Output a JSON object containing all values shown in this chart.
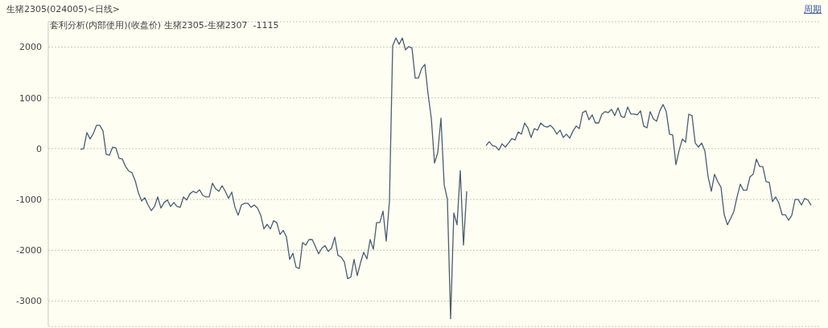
{
  "chart_data": {
    "type": "line",
    "title": "生猪2305(024005)<日线>",
    "subtitle": "套利分析(内部使用)(收盘价) 生猪2305-生猪2307  -1115",
    "annotations": [
      "周期"
    ],
    "categories": [
      null,
      null,
      null,
      null,
      null,
      null,
      null,
      null,
      null,
      null,
      null,
      null,
      null,
      null,
      null,
      null,
      null,
      null,
      null,
      null,
      null,
      null,
      null,
      null,
      null,
      null,
      null,
      null,
      null,
      null,
      null,
      null,
      null,
      null,
      null,
      null,
      null,
      null,
      null,
      null,
      null,
      null,
      null,
      null,
      null,
      null,
      null,
      null,
      null,
      null,
      null,
      null,
      null,
      null,
      null,
      null,
      null,
      null,
      null,
      null,
      null,
      null,
      null,
      null,
      null,
      null,
      null,
      null,
      null,
      null,
      null,
      null,
      null,
      null,
      null,
      null,
      null,
      null,
      null,
      null,
      null,
      null,
      null,
      null,
      null,
      null,
      null,
      null,
      null,
      null,
      null,
      null,
      null,
      null,
      null,
      null,
      null,
      null,
      null,
      null,
      null,
      null,
      null,
      null,
      null,
      null,
      null,
      null,
      null,
      null,
      null,
      null,
      null,
      null,
      null,
      null,
      null,
      null,
      null,
      null,
      null,
      null,
      null,
      null,
      null,
      null,
      null,
      null,
      null,
      null,
      null,
      null,
      null,
      null,
      null,
      null,
      null,
      null,
      null,
      null,
      null,
      null,
      null,
      null,
      null,
      null,
      null,
      null,
      null,
      null,
      null,
      null,
      null,
      null,
      null,
      null,
      null,
      null,
      null,
      null,
      null,
      null,
      null,
      null,
      null,
      null,
      null,
      null,
      null,
      null,
      null,
      null,
      null,
      null,
      null,
      null,
      null,
      null,
      null,
      null,
      null,
      null,
      null,
      null,
      null,
      null,
      null,
      null,
      null,
      null,
      null,
      null,
      null,
      null,
      null,
      null,
      null,
      null,
      null,
      null,
      null,
      null,
      null,
      null,
      null,
      null,
      null,
      null,
      null,
      null,
      null,
      null,
      null,
      null,
      null,
      null,
      null,
      null,
      null,
      null,
      null,
      null,
      null,
      null,
      null,
      null,
      null,
      null,
      null,
      null,
      null,
      null,
      null,
      null,
      null,
      null,
      null,
      null,
      null,
      null,
      null
    ],
    "series": [
      {
        "color": "#4a5e70",
        "values": [
          null,
          null,
          null,
          null,
          null,
          null,
          null,
          null,
          null,
          null,
          -15,
          0,
          316,
          190,
          300,
          460,
          460,
          350,
          -110,
          -130,
          30,
          15,
          -190,
          -205,
          -350,
          -440,
          -475,
          -630,
          -870,
          -1030,
          -965,
          -1110,
          -1220,
          -1140,
          -950,
          -1170,
          -1060,
          -1010,
          -1140,
          -1060,
          -1140,
          -1155,
          -950,
          -1010,
          -890,
          -840,
          -870,
          -810,
          -920,
          -950,
          -950,
          -680,
          -790,
          -840,
          -730,
          -840,
          -980,
          -855,
          -1155,
          -1310,
          -1110,
          -1075,
          -1075,
          -1155,
          -1110,
          -1170,
          -1310,
          -1580,
          -1490,
          -1580,
          -1420,
          -1455,
          -1690,
          -1610,
          -1740,
          -2180,
          -2060,
          -2340,
          -2360,
          -1850,
          -1900,
          -1790,
          -1790,
          -1930,
          -2070,
          -1960,
          -1910,
          -2025,
          -1960,
          -1740,
          -2100,
          -2135,
          -2230,
          -2560,
          -2530,
          -2180,
          -2500,
          -2250,
          -2040,
          -2170,
          -1790,
          -1980,
          -1455,
          -1455,
          -1230,
          -1820,
          -1030,
          2025,
          2180,
          2055,
          2180,
          1945,
          2010,
          1980,
          1390,
          1390,
          1580,
          1660,
          1075,
          600,
          -285,
          -80,
          600,
          -710,
          -1000,
          -3350,
          -1265,
          -1500,
          -430,
          -1900,
          -840,
          null,
          null,
          null,
          null,
          null,
          60,
          140,
          60,
          45,
          -30,
          95,
          30,
          110,
          200,
          170,
          330,
          285,
          505,
          410,
          220,
          395,
          365,
          505,
          445,
          425,
          460,
          395,
          285,
          365,
          220,
          285,
          205,
          345,
          445,
          395,
          710,
          745,
          570,
          665,
          505,
          505,
          680,
          730,
          710,
          775,
          650,
          805,
          635,
          615,
          820,
          680,
          680,
          665,
          745,
          445,
          410,
          730,
          585,
          540,
          745,
          870,
          730,
          285,
          270,
          -315,
          -30,
          190,
          125,
          680,
          650,
          110,
          30,
          110,
          -45,
          -555,
          -840,
          -505,
          -650,
          -760,
          -1300,
          -1500,
          -1375,
          -1235,
          -950,
          -700,
          -820,
          -820,
          -555,
          -505,
          -205,
          -350,
          -350,
          -650,
          -665,
          -1045,
          -950,
          -1075,
          -1300,
          -1300,
          -1410,
          -1315,
          -1000,
          -1000,
          -1110,
          -980,
          -1010,
          -1115,
          null,
          null,
          null
        ]
      }
    ],
    "ylim": [
      -3500,
      2500
    ],
    "yticks": [
      2000,
      1000,
      0,
      -1000,
      -2000,
      -3000
    ],
    "grid": "y"
  }
}
